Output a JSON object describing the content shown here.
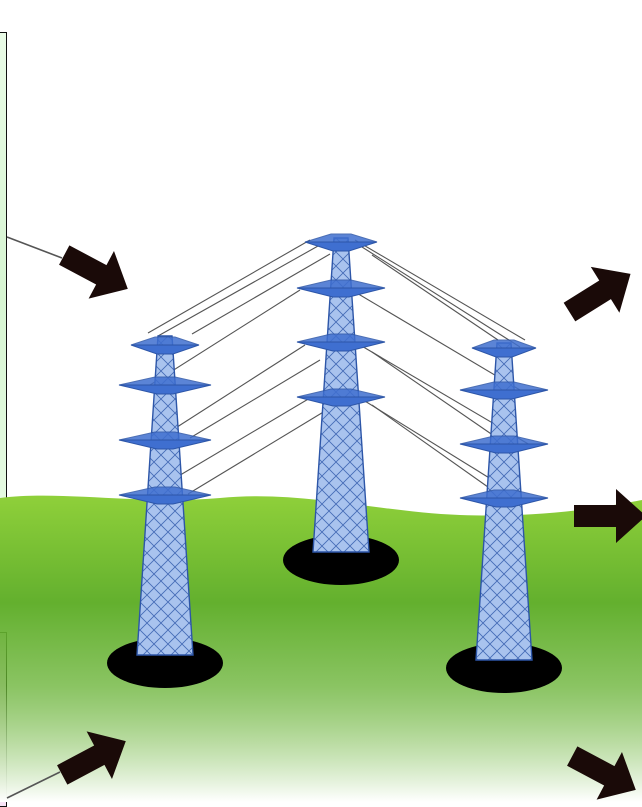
{
  "scene": {
    "colors": {
      "sky": "#ffffff",
      "grass_top": "#8fd03a",
      "grass_mid": "#63b02e",
      "grass_fade": "#ffffff",
      "tower_fill": "#a9c3ee",
      "tower_edge": "#2d56a8",
      "tower_crossarm": "#3f6fd0",
      "tower_shadow": "#000000",
      "arrow": "#1a0a08",
      "wire": "#555555",
      "left_box_top_fill": "#d7f5d2",
      "left_box_bottom_fill": "#f7e3f6"
    },
    "towers": [
      {
        "name": "tower-left"
      },
      {
        "name": "tower-center"
      },
      {
        "name": "tower-right"
      }
    ],
    "arrows": [
      {
        "name": "arrow-top-left"
      },
      {
        "name": "arrow-bottom-left"
      },
      {
        "name": "arrow-top-right"
      },
      {
        "name": "arrow-middle-right"
      },
      {
        "name": "arrow-bottom-right"
      }
    ]
  }
}
